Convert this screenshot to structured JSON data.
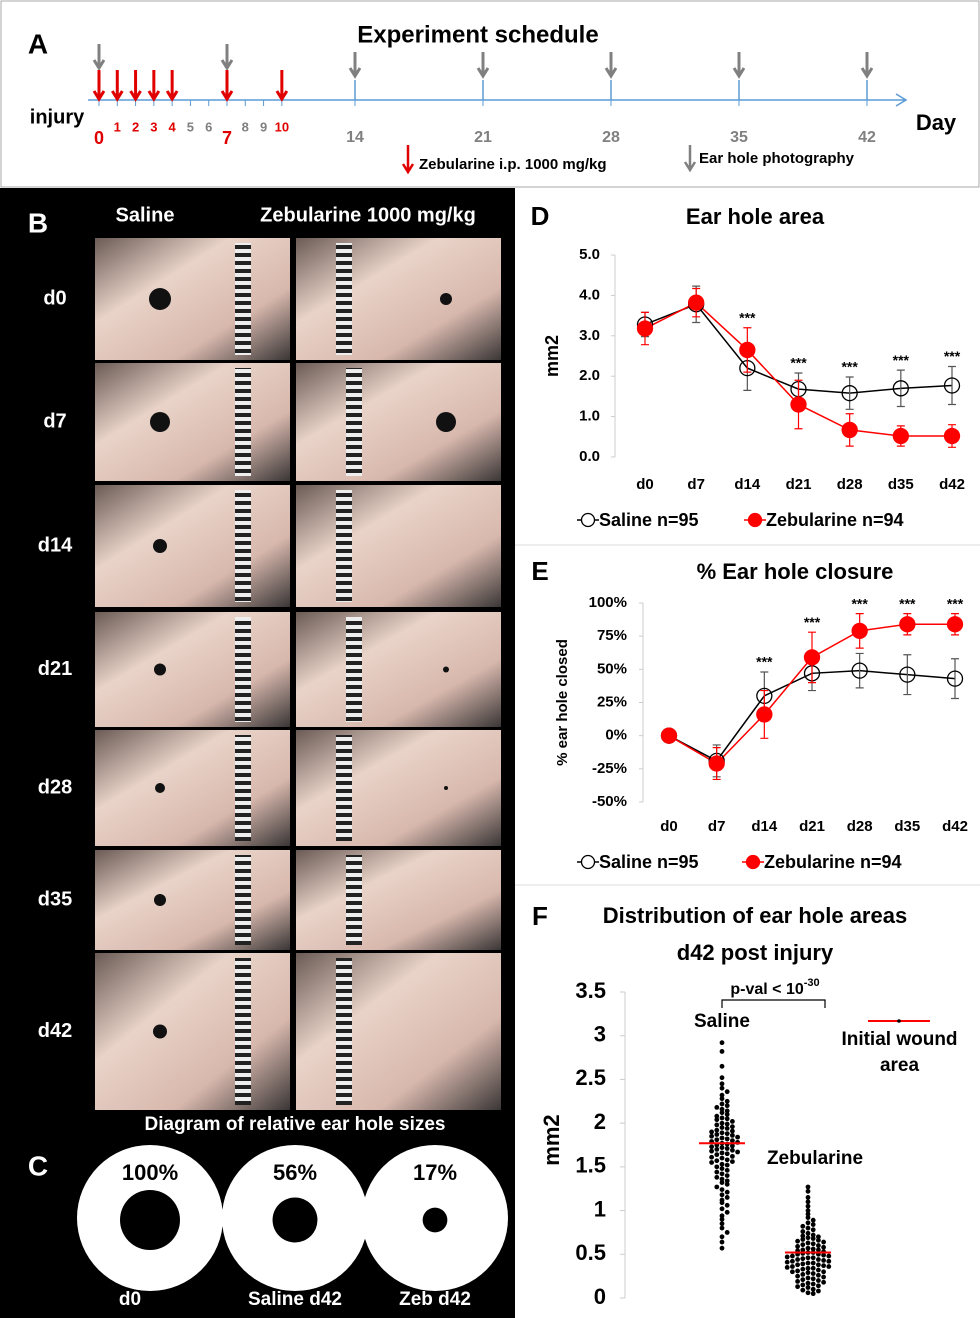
{
  "chart_data": [
    {
      "type": "timeline",
      "panel": "A",
      "title": "Experiment schedule",
      "start_label": "injury",
      "xlabel": "Day",
      "xlim": [
        0,
        42
      ],
      "xticks": [
        0,
        1,
        2,
        3,
        4,
        5,
        6,
        7,
        8,
        9,
        10,
        14,
        21,
        28,
        35,
        42
      ],
      "treatment_days": [
        0,
        1,
        2,
        3,
        4,
        7,
        10
      ],
      "photo_days": [
        0,
        7,
        14,
        21,
        28,
        35,
        42
      ],
      "treatment_label": "Zebularine i.p. 1000 mg/kg",
      "photo_label": "Ear hole photography",
      "axis_color": "#5b9bd5",
      "treatment_color": "#e00000",
      "photo_color": "#808080"
    },
    {
      "type": "circles",
      "panel": "C",
      "title": "Diagram of relative ear hole sizes",
      "categories": [
        "d0",
        "Saline d42",
        "Zeb d42"
      ],
      "values": [
        100,
        56,
        17
      ],
      "value_labels": [
        "100%",
        "56%",
        "17%"
      ]
    },
    {
      "type": "line",
      "panel": "D",
      "title": "Ear hole area",
      "ylabel": "mm2",
      "categories": [
        "d0",
        "d7",
        "d14",
        "d21",
        "d28",
        "d35",
        "d42"
      ],
      "series": [
        {
          "name": "Saline n=95",
          "color": "#000000",
          "marker": "open",
          "values": [
            3.28,
            3.78,
            2.2,
            1.68,
            1.58,
            1.7,
            1.77
          ],
          "errors": [
            0.3,
            0.45,
            0.55,
            0.4,
            0.4,
            0.45,
            0.47
          ]
        },
        {
          "name": "Zebularine n=94",
          "color": "#ff0000",
          "marker": "filled",
          "values": [
            3.18,
            3.82,
            2.65,
            1.3,
            0.67,
            0.52,
            0.52
          ],
          "errors": [
            0.4,
            0.35,
            0.55,
            0.6,
            0.4,
            0.25,
            0.28
          ]
        }
      ],
      "significance": [
        null,
        null,
        "***",
        "***",
        "***",
        "***",
        "***"
      ],
      "ylim": [
        0,
        5
      ],
      "yticks": [
        {
          "value": 0,
          "label": "0.0"
        },
        {
          "value": 1,
          "label": "1.0"
        },
        {
          "value": 2,
          "label": "2.0"
        },
        {
          "value": 3,
          "label": "3.0"
        },
        {
          "value": 4,
          "label": "4.0"
        },
        {
          "value": 5,
          "label": "5.0"
        }
      ]
    },
    {
      "type": "line",
      "panel": "E",
      "title": "% Ear hole closure",
      "ylabel": "% ear hole closed",
      "categories": [
        "d0",
        "d7",
        "d14",
        "d21",
        "d28",
        "d35",
        "d42"
      ],
      "series": [
        {
          "name": "Saline n=95",
          "color": "#000000",
          "marker": "open",
          "values": [
            0,
            -19,
            30,
            47,
            49,
            46,
            43
          ],
          "errors": [
            0,
            12,
            18,
            13,
            13,
            15,
            15
          ]
        },
        {
          "name": "Zebularine n=94",
          "color": "#ff0000",
          "marker": "filled",
          "values": [
            0,
            -21,
            16,
            59,
            79,
            84,
            84
          ],
          "errors": [
            0,
            12,
            18,
            19,
            13,
            8,
            8
          ]
        }
      ],
      "significance": [
        null,
        null,
        "***",
        "***",
        "***",
        "***",
        "***"
      ],
      "ylim": [
        -50,
        100
      ],
      "yticks": [
        {
          "value": -50,
          "label": "-50%"
        },
        {
          "value": -25,
          "label": "-25%"
        },
        {
          "value": 0,
          "label": "0%"
        },
        {
          "value": 25,
          "label": "25%"
        },
        {
          "value": 50,
          "label": "50%"
        },
        {
          "value": 75,
          "label": "75%"
        },
        {
          "value": 100,
          "label": "100%"
        }
      ]
    },
    {
      "type": "dotplot",
      "panel": "F",
      "title": "Distribution of ear hole areas d42 post injury",
      "ylabel": "mm2",
      "p_value": {
        "text": "p-val < 10",
        "exponent": "-30"
      },
      "line_label": "Initial wound area",
      "line_color": "#ff0000",
      "series": [
        {
          "name": "Saline",
          "color": "#000000",
          "mean": 1.77,
          "values": [
            2.92,
            2.82,
            2.65,
            2.52,
            2.45,
            2.4,
            2.36,
            2.32,
            2.28,
            2.25,
            2.22,
            2.2,
            2.18,
            2.16,
            2.14,
            2.12,
            2.1,
            2.08,
            2.06,
            2.05,
            2.04,
            2.02,
            2.0,
            1.99,
            1.98,
            1.96,
            1.95,
            1.94,
            1.92,
            1.91,
            1.9,
            1.89,
            1.88,
            1.87,
            1.86,
            1.85,
            1.84,
            1.83,
            1.82,
            1.81,
            1.8,
            1.79,
            1.78,
            1.77,
            1.76,
            1.75,
            1.74,
            1.73,
            1.72,
            1.71,
            1.7,
            1.69,
            1.68,
            1.67,
            1.66,
            1.65,
            1.64,
            1.62,
            1.61,
            1.6,
            1.58,
            1.57,
            1.56,
            1.55,
            1.53,
            1.52,
            1.5,
            1.48,
            1.46,
            1.44,
            1.42,
            1.4,
            1.38,
            1.36,
            1.34,
            1.32,
            1.3,
            1.27,
            1.24,
            1.21,
            1.18,
            1.15,
            1.12,
            1.09,
            1.06,
            1.02,
            0.98,
            0.94,
            0.9,
            0.85,
            0.8,
            0.75,
            0.7,
            0.64,
            0.57
          ]
        },
        {
          "name": "Zebularine",
          "color": "#000000",
          "mean": 0.52,
          "values": [
            1.27,
            1.22,
            1.15,
            1.1,
            1.05,
            1.0,
            0.96,
            0.92,
            0.89,
            0.86,
            0.84,
            0.82,
            0.8,
            0.78,
            0.76,
            0.74,
            0.72,
            0.71,
            0.7,
            0.69,
            0.68,
            0.67,
            0.66,
            0.65,
            0.64,
            0.63,
            0.62,
            0.61,
            0.6,
            0.59,
            0.58,
            0.57,
            0.56,
            0.55,
            0.55,
            0.54,
            0.53,
            0.52,
            0.52,
            0.51,
            0.5,
            0.5,
            0.49,
            0.48,
            0.48,
            0.47,
            0.46,
            0.46,
            0.45,
            0.44,
            0.44,
            0.43,
            0.42,
            0.42,
            0.41,
            0.4,
            0.4,
            0.39,
            0.38,
            0.38,
            0.37,
            0.36,
            0.36,
            0.35,
            0.34,
            0.34,
            0.33,
            0.32,
            0.31,
            0.3,
            0.3,
            0.29,
            0.28,
            0.27,
            0.26,
            0.25,
            0.24,
            0.23,
            0.22,
            0.21,
            0.2,
            0.19,
            0.18,
            0.17,
            0.16,
            0.15,
            0.14,
            0.13,
            0.12,
            0.1,
            0.09,
            0.08,
            0.06,
            0.05
          ]
        }
      ],
      "ylim": [
        0,
        3.5
      ],
      "yticks": [
        0,
        0.5,
        1,
        1.5,
        2,
        2.5,
        3,
        3.5
      ]
    }
  ],
  "panel_b": {
    "panel": "B",
    "columns": [
      "Saline",
      "Zebularine 1000 mg/kg"
    ],
    "rows": [
      "d0",
      "d7",
      "d14",
      "d21",
      "d28",
      "d35",
      "d42"
    ]
  }
}
